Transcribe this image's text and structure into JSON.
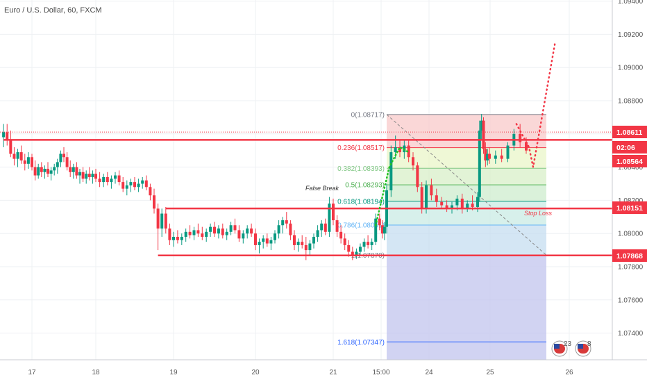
{
  "header": {
    "symbol_title": "Euro / U.S. Dollar, 60, FXCM"
  },
  "chart_data": {
    "type": "candlestick",
    "title": "Euro / U.S. Dollar, 60, FXCM",
    "ylim": [
      1.0722,
      1.0945
    ],
    "y_ticks": [
      1.094,
      1.092,
      1.09,
      1.088,
      1.086,
      1.084,
      1.082,
      1.08,
      1.078,
      1.076,
      1.074
    ],
    "y_tick_labels": [
      "1.09400",
      "1.09200",
      "1.09000",
      "1.08800",
      "1.08600",
      "1.08400",
      "1.08200",
      "1.08000",
      "1.07800",
      "1.07600",
      "1.07400"
    ],
    "x_ticks": [
      {
        "label": "17",
        "day": 17.0
      },
      {
        "label": "18",
        "day": 18.0
      },
      {
        "label": "19",
        "day": 19.0
      },
      {
        "label": "20",
        "day": 20.0
      },
      {
        "label": "21",
        "day": 21.0
      },
      {
        "label": "15:00",
        "day": 21.62
      },
      {
        "label": "24",
        "day": 24.0
      },
      {
        "label": "25",
        "day": 25.0
      },
      {
        "label": "26",
        "day": 26.0
      }
    ],
    "price_tags": [
      {
        "label": "1.08611",
        "value": 1.08611,
        "color": "#f23645"
      },
      {
        "label": "02:06",
        "value": 1.0855,
        "color": "#f23645"
      },
      {
        "label": "1.08564",
        "value": 1.08564,
        "color": "#f23645"
      },
      {
        "label": "1.08151",
        "value": 1.08151,
        "color": "#f23645"
      },
      {
        "label": "1.07868",
        "value": 1.07868,
        "color": "#f23645"
      }
    ],
    "support_resistance": [
      {
        "value": 1.08564,
        "from_day": 16.6
      },
      {
        "value": 1.08151,
        "from_day": 18.9
      },
      {
        "value": 1.07868,
        "from_day": 18.8
      }
    ],
    "fib_levels": [
      {
        "label": "0(1.08717)",
        "value": 1.08717,
        "color": "#787b86"
      },
      {
        "label": "0.236(1.08517)",
        "value": 1.08517,
        "color": "#f23645"
      },
      {
        "label": "0.382(1.08393)",
        "value": 1.08393,
        "color": "#81c784"
      },
      {
        "label": "0.5(1.08293)",
        "value": 1.08293,
        "color": "#4caf50"
      },
      {
        "label": "0.618(1.08194)",
        "value": 1.08194,
        "color": "#089981"
      },
      {
        "label": "0.786(1.08051)",
        "value": 1.08051,
        "color": "#64b5f6"
      },
      {
        "label": "1(1.07870)",
        "value": 1.0787,
        "color": "#787b86"
      },
      {
        "label": "1.618(1.07347)",
        "value": 1.07347,
        "color": "#2962ff"
      }
    ],
    "fib_day_range": [
      21.72,
      25.72
    ],
    "annotations": [
      {
        "text": "False Break",
        "day": 21.05,
        "value": 1.0826,
        "color": "#333333"
      },
      {
        "text": "Stop Loss",
        "day": 25.5,
        "value": 1.0811,
        "color": "#f23645"
      }
    ],
    "projection": [
      {
        "day": 21.7,
        "value": 1.0805
      },
      {
        "day": 22.05,
        "value": 1.0846
      },
      {
        "day": 22.3,
        "value": 1.0852
      },
      {
        "day": 22.55,
        "value": 1.0842
      },
      {
        "day": 25.45,
        "value": 1.0866
      },
      {
        "day": 25.6,
        "value": 1.084
      },
      {
        "day": 25.85,
        "value": 1.0914
      }
    ],
    "diagonal": [
      {
        "day": 21.72,
        "value": 1.08717
      },
      {
        "day": 25.72,
        "value": 1.0787
      }
    ],
    "events": [
      {
        "label": "23",
        "day": 25.9
      },
      {
        "label": "8",
        "day": 26.25
      }
    ],
    "candles": [
      [
        16.6,
        1.0858,
        1.0866,
        1.0852,
        1.0861
      ],
      [
        16.65,
        1.0861,
        1.0866,
        1.0853,
        1.0856
      ],
      [
        16.7,
        1.0856,
        1.0862,
        1.0846,
        1.0848
      ],
      [
        16.75,
        1.0848,
        1.0852,
        1.0841,
        1.0845
      ],
      [
        16.8,
        1.0845,
        1.0851,
        1.084,
        1.0849
      ],
      [
        16.85,
        1.0849,
        1.0853,
        1.0842,
        1.0844
      ],
      [
        16.9,
        1.0844,
        1.0848,
        1.0838,
        1.0842
      ],
      [
        16.95,
        1.0842,
        1.0849,
        1.0839,
        1.0846
      ],
      [
        17.0,
        1.0846,
        1.0848,
        1.0838,
        1.084
      ],
      [
        17.05,
        1.084,
        1.0844,
        1.0832,
        1.0835
      ],
      [
        17.1,
        1.0835,
        1.0842,
        1.0833,
        1.084
      ],
      [
        17.15,
        1.084,
        1.0843,
        1.0834,
        1.0837
      ],
      [
        17.2,
        1.0837,
        1.0841,
        1.0833,
        1.0839
      ],
      [
        17.25,
        1.0839,
        1.0843,
        1.0834,
        1.0836
      ],
      [
        17.3,
        1.0836,
        1.084,
        1.0832,
        1.0838
      ],
      [
        17.35,
        1.0838,
        1.0842,
        1.0835,
        1.084
      ],
      [
        17.4,
        1.084,
        1.0845,
        1.0836,
        1.0843
      ],
      [
        17.45,
        1.0843,
        1.085,
        1.084,
        1.0848
      ],
      [
        17.5,
        1.0848,
        1.0852,
        1.0843,
        1.0846
      ],
      [
        17.55,
        1.0846,
        1.0849,
        1.0838,
        1.084
      ],
      [
        17.6,
        1.084,
        1.0844,
        1.0834,
        1.0837
      ],
      [
        17.65,
        1.0837,
        1.0842,
        1.0833,
        1.084
      ],
      [
        17.7,
        1.084,
        1.0843,
        1.0833,
        1.0835
      ],
      [
        17.75,
        1.0835,
        1.0839,
        1.083,
        1.0837
      ],
      [
        17.8,
        1.0837,
        1.084,
        1.0831,
        1.0833
      ],
      [
        17.85,
        1.0833,
        1.0838,
        1.083,
        1.0836
      ],
      [
        17.9,
        1.0836,
        1.084,
        1.0832,
        1.0834
      ],
      [
        17.95,
        1.0834,
        1.0838,
        1.083,
        1.0836
      ],
      [
        18.0,
        1.0836,
        1.0839,
        1.0831,
        1.0833
      ],
      [
        18.05,
        1.0833,
        1.0837,
        1.0828,
        1.0831
      ],
      [
        18.1,
        1.0831,
        1.0836,
        1.0828,
        1.0834
      ],
      [
        18.15,
        1.0834,
        1.0837,
        1.0829,
        1.0831
      ],
      [
        18.2,
        1.0831,
        1.0835,
        1.0827,
        1.0833
      ],
      [
        18.25,
        1.0833,
        1.0837,
        1.083,
        1.0835
      ],
      [
        18.3,
        1.0835,
        1.0838,
        1.0829,
        1.0831
      ],
      [
        18.35,
        1.0831,
        1.0834,
        1.0825,
        1.0827
      ],
      [
        18.4,
        1.0827,
        1.0832,
        1.0823,
        1.0829
      ],
      [
        18.45,
        1.0829,
        1.0833,
        1.0825,
        1.0831
      ],
      [
        18.5,
        1.0831,
        1.0834,
        1.0826,
        1.0828
      ],
      [
        18.55,
        1.0828,
        1.0833,
        1.0825,
        1.083
      ],
      [
        18.6,
        1.083,
        1.0834,
        1.0827,
        1.0832
      ],
      [
        18.65,
        1.0832,
        1.0835,
        1.0826,
        1.0828
      ],
      [
        18.7,
        1.0828,
        1.083,
        1.082,
        1.0823
      ],
      [
        18.75,
        1.0823,
        1.0827,
        1.0812,
        1.0815
      ],
      [
        18.8,
        1.0815,
        1.0818,
        1.079,
        1.0803
      ],
      [
        18.85,
        1.0803,
        1.0815,
        1.0798,
        1.0812
      ],
      [
        18.9,
        1.0812,
        1.0816,
        1.08,
        1.0803
      ],
      [
        18.95,
        1.0803,
        1.0806,
        1.0793,
        1.0796
      ],
      [
        19.0,
        1.0796,
        1.0801,
        1.0792,
        1.0798
      ],
      [
        19.05,
        1.0798,
        1.0802,
        1.0794,
        1.0796
      ],
      [
        19.1,
        1.0796,
        1.08,
        1.0793,
        1.0798
      ],
      [
        19.15,
        1.0798,
        1.0803,
        1.0795,
        1.0801
      ],
      [
        19.2,
        1.0801,
        1.0805,
        1.0797,
        1.0799
      ],
      [
        19.25,
        1.0799,
        1.0804,
        1.0796,
        1.0802
      ],
      [
        19.3,
        1.0802,
        1.0806,
        1.0798,
        1.08
      ],
      [
        19.35,
        1.08,
        1.0804,
        1.0796,
        1.0798
      ],
      [
        19.4,
        1.0798,
        1.0803,
        1.0795,
        1.0801
      ],
      [
        19.45,
        1.0801,
        1.0806,
        1.0798,
        1.0804
      ],
      [
        19.5,
        1.0804,
        1.0807,
        1.0798,
        1.08
      ],
      [
        19.55,
        1.08,
        1.0805,
        1.0797,
        1.0803
      ],
      [
        19.6,
        1.0803,
        1.0806,
        1.0797,
        1.0799
      ],
      [
        19.65,
        1.0799,
        1.0803,
        1.0796,
        1.0801
      ],
      [
        19.7,
        1.0801,
        1.0807,
        1.0799,
        1.0805
      ],
      [
        19.75,
        1.0805,
        1.0809,
        1.08,
        1.0802
      ],
      [
        19.8,
        1.0802,
        1.0805,
        1.0795,
        1.0797
      ],
      [
        19.85,
        1.0797,
        1.0802,
        1.0794,
        1.08
      ],
      [
        19.9,
        1.08,
        1.0805,
        1.0797,
        1.0803
      ],
      [
        19.95,
        1.0803,
        1.0806,
        1.0798,
        1.08
      ],
      [
        20.0,
        1.08,
        1.0803,
        1.079,
        1.0793
      ],
      [
        20.05,
        1.0793,
        1.0797,
        1.0788,
        1.0795
      ],
      [
        20.1,
        1.0795,
        1.0799,
        1.0791,
        1.0797
      ],
      [
        20.15,
        1.0797,
        1.08,
        1.0792,
        1.0794
      ],
      [
        20.2,
        1.0794,
        1.0798,
        1.079,
        1.0796
      ],
      [
        20.25,
        1.0796,
        1.0802,
        1.0794,
        1.08
      ],
      [
        20.3,
        1.08,
        1.0808,
        1.0797,
        1.0805
      ],
      [
        20.35,
        1.0805,
        1.081,
        1.08,
        1.0808
      ],
      [
        20.4,
        1.0808,
        1.0813,
        1.0803,
        1.0806
      ],
      [
        20.45,
        1.0806,
        1.0808,
        1.0796,
        1.0799
      ],
      [
        20.5,
        1.0799,
        1.0802,
        1.079,
        1.0793
      ],
      [
        20.55,
        1.0793,
        1.0797,
        1.0789,
        1.0795
      ],
      [
        20.6,
        1.0795,
        1.0799,
        1.0791,
        1.0793
      ],
      [
        20.65,
        1.0793,
        1.0798,
        1.0784,
        1.079
      ],
      [
        20.7,
        1.079,
        1.0796,
        1.0787,
        1.0794
      ],
      [
        20.75,
        1.0794,
        1.08,
        1.0791,
        1.0798
      ],
      [
        20.8,
        1.0798,
        1.0805,
        1.0795,
        1.0802
      ],
      [
        20.85,
        1.0802,
        1.0808,
        1.0798,
        1.0806
      ],
      [
        20.9,
        1.0806,
        1.0809,
        1.0799,
        1.0801
      ],
      [
        20.95,
        1.0801,
        1.0822,
        1.0798,
        1.0818
      ],
      [
        21.0,
        1.0818,
        1.0821,
        1.0805,
        1.0808
      ],
      [
        21.05,
        1.0808,
        1.0811,
        1.0798,
        1.0801
      ],
      [
        21.1,
        1.0801,
        1.0805,
        1.0794,
        1.0797
      ],
      [
        21.15,
        1.0797,
        1.08,
        1.079,
        1.0793
      ],
      [
        21.2,
        1.0793,
        1.0796,
        1.0786,
        1.0789
      ],
      [
        21.25,
        1.0789,
        1.0792,
        1.0784,
        1.0787
      ],
      [
        21.3,
        1.0787,
        1.0791,
        1.0785,
        1.0789
      ],
      [
        21.35,
        1.0789,
        1.0794,
        1.0787,
        1.0792
      ],
      [
        21.4,
        1.0792,
        1.0797,
        1.0789,
        1.0795
      ],
      [
        21.45,
        1.0795,
        1.0799,
        1.0791,
        1.0793
      ],
      [
        21.5,
        1.0793,
        1.0797,
        1.079,
        1.0795
      ],
      [
        21.55,
        1.0795,
        1.0812,
        1.0793,
        1.0809
      ],
      [
        21.6,
        1.0809,
        1.0812,
        1.0802,
        1.0805
      ],
      [
        21.65,
        1.0805,
        1.0808,
        1.0797,
        1.08
      ],
      [
        21.7,
        1.08,
        1.0807,
        1.0796,
        1.0804
      ],
      [
        21.75,
        1.0804,
        1.083,
        1.08,
        1.0826
      ],
      [
        21.8,
        1.0826,
        1.0853,
        1.0822,
        1.0849
      ],
      [
        21.85,
        1.0849,
        1.0859,
        1.0845,
        1.0852
      ],
      [
        21.9,
        1.0852,
        1.0856,
        1.0846,
        1.0849
      ],
      [
        21.95,
        1.0849,
        1.0856,
        1.0845,
        1.0853
      ],
      [
        22.0,
        1.0853,
        1.0856,
        1.0843,
        1.0846
      ],
      [
        22.05,
        1.0846,
        1.0849,
        1.0838,
        1.0841
      ],
      [
        22.1,
        1.0841,
        1.0843,
        1.0825,
        1.0828
      ],
      [
        22.15,
        1.0828,
        1.0831,
        1.0812,
        1.0815
      ],
      [
        22.2,
        1.0815,
        1.0832,
        1.0812,
        1.0829
      ],
      [
        22.25,
        1.0829,
        1.0833,
        1.082,
        1.0823
      ],
      [
        22.3,
        1.0823,
        1.0827,
        1.0816,
        1.0819
      ],
      [
        22.35,
        1.0819,
        1.0822,
        1.0815,
        1.0817
      ],
      [
        22.4,
        1.0817,
        1.082,
        1.0813,
        1.0815
      ],
      [
        22.45,
        1.0815,
        1.0819,
        1.0812,
        1.0817
      ],
      [
        22.5,
        1.0817,
        1.0823,
        1.0814,
        1.0821
      ],
      [
        22.55,
        1.0821,
        1.0824,
        1.0812,
        1.0815
      ],
      [
        22.6,
        1.0815,
        1.082,
        1.0813,
        1.0818
      ],
      [
        22.65,
        1.0818,
        1.0823,
        1.0814,
        1.0816
      ],
      [
        22.7,
        1.0816,
        1.0825,
        1.0813,
        1.0822
      ],
      [
        22.75,
        1.0822,
        1.0868,
        1.0819,
        1.0862
      ],
      [
        22.8,
        1.0862,
        1.0872,
        1.0856,
        1.0868
      ],
      [
        22.85,
        1.0868,
        1.087,
        1.0848,
        1.0851
      ],
      [
        22.9,
        1.0851,
        1.0855,
        1.084,
        1.0844
      ],
      [
        22.95,
        1.0844,
        1.0851,
        1.0841,
        1.0848
      ],
      [
        23.0,
        1.0848,
        1.0852,
        1.0842,
        1.0845
      ],
      [
        23.05,
        1.0845,
        1.085,
        1.0842,
        1.0847
      ],
      [
        23.1,
        1.0847,
        1.0851,
        1.0843,
        1.0845
      ],
      [
        23.15,
        1.0845,
        1.0855,
        1.0843,
        1.0853
      ],
      [
        23.2,
        1.0853,
        1.0863,
        1.085,
        1.086
      ],
      [
        23.25,
        1.086,
        1.0866,
        1.0852,
        1.0855
      ],
      [
        23.3,
        1.0855,
        1.0858,
        1.0848,
        1.085
      ]
    ]
  }
}
